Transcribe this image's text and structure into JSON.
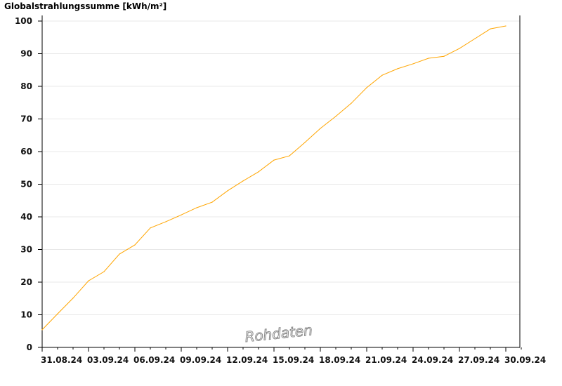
{
  "chart_data": {
    "type": "line",
    "title": "Globalstrahlungssumme [kWh/m²]",
    "xlabel": "",
    "ylabel": "",
    "watermark": "Rohdaten",
    "line_color": "#ffa500",
    "grid": true,
    "ylim": [
      0,
      100
    ],
    "yticks": [
      0,
      10,
      20,
      30,
      40,
      50,
      60,
      70,
      80,
      90,
      100
    ],
    "xticks": [
      "31.08.24",
      "03.09.24",
      "06.09.24",
      "09.09.24",
      "12.09.24",
      "15.09.24",
      "18.09.24",
      "21.09.24",
      "24.09.24",
      "27.09.24",
      "30.09.24"
    ],
    "x": [
      "31.08.24",
      "01.09.24",
      "02.09.24",
      "03.09.24",
      "04.09.24",
      "05.09.24",
      "06.09.24",
      "07.09.24",
      "08.09.24",
      "09.09.24",
      "10.09.24",
      "11.09.24",
      "12.09.24",
      "13.09.24",
      "14.09.24",
      "15.09.24",
      "16.09.24",
      "17.09.24",
      "18.09.24",
      "19.09.24",
      "20.09.24",
      "21.09.24",
      "22.09.24",
      "23.09.24",
      "24.09.24",
      "25.09.24",
      "26.09.24",
      "27.09.24",
      "28.09.24",
      "29.09.24",
      "30.09.24"
    ],
    "values": [
      5.4,
      10.3,
      15.1,
      20.4,
      23.2,
      28.6,
      31.4,
      36.6,
      38.5,
      40.6,
      42.8,
      44.5,
      48.0,
      51.0,
      53.8,
      57.4,
      58.7,
      62.8,
      67.1,
      70.8,
      74.8,
      79.6,
      83.4,
      85.4,
      86.9,
      88.6,
      89.2,
      91.6,
      94.6,
      97.6,
      98.5
    ]
  }
}
